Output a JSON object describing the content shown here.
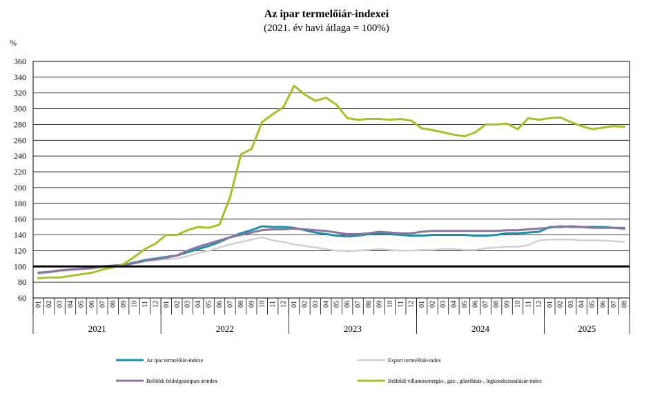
{
  "chart_data": {
    "type": "line",
    "title": "Az ipar  termelőiár-indexei",
    "subtitle": "(2021. év havi átlaga = 100%)",
    "ylabel": "%",
    "ylim": [
      60,
      360
    ],
    "yticks": [
      60,
      80,
      100,
      120,
      140,
      160,
      180,
      200,
      220,
      240,
      260,
      280,
      300,
      320,
      340,
      360
    ],
    "reference_line": 100,
    "grid": true,
    "years": [
      {
        "label": "2021",
        "months": 12
      },
      {
        "label": "2022",
        "months": 12
      },
      {
        "label": "2023",
        "months": 12
      },
      {
        "label": "2024",
        "months": 12
      },
      {
        "label": "2025",
        "months": 8
      }
    ],
    "x": [
      "01",
      "02",
      "03",
      "04",
      "05",
      "06",
      "07",
      "08",
      "09",
      "10",
      "11",
      "12",
      "01",
      "02",
      "03",
      "04",
      "05",
      "06",
      "07",
      "08",
      "09",
      "10",
      "11",
      "12",
      "01",
      "02",
      "03",
      "04",
      "05",
      "06",
      "07",
      "08",
      "09",
      "10",
      "11",
      "12",
      "01",
      "02",
      "03",
      "04",
      "05",
      "06",
      "07",
      "08",
      "09",
      "10",
      "11",
      "12",
      "01",
      "02",
      "03",
      "04",
      "05",
      "06",
      "07",
      "08"
    ],
    "series": [
      {
        "name": "Az ipar termelőiár-indexe",
        "color": "#1a8fae",
        "width": 3,
        "values": [
          92,
          93,
          95,
          96,
          97,
          98,
          100,
          101,
          102,
          105,
          108,
          110,
          112,
          114,
          118,
          122,
          126,
          131,
          137,
          142,
          146,
          151,
          150,
          150,
          149,
          146,
          143,
          141,
          139,
          138,
          139,
          141,
          142,
          141,
          140,
          139,
          139,
          140,
          140,
          140,
          140,
          139,
          139,
          140,
          142,
          142,
          143,
          144,
          150,
          150,
          151,
          150,
          150,
          150,
          149,
          148
        ]
      },
      {
        "name": "Export termelőiár-index",
        "color": "#d0d0d0",
        "width": 2.5,
        "values": [
          90,
          92,
          94,
          95,
          96,
          97,
          99,
          100,
          101,
          104,
          107,
          108,
          109,
          110,
          113,
          117,
          120,
          124,
          128,
          131,
          134,
          137,
          133,
          131,
          128,
          126,
          124,
          122,
          120,
          119,
          120,
          121,
          122,
          121,
          120,
          120,
          121,
          121,
          122,
          122,
          121,
          121,
          123,
          124,
          125,
          125,
          127,
          133,
          134,
          134,
          134,
          133,
          133,
          133,
          132,
          131
        ]
      },
      {
        "name": "Belföldi feldolgozóipari árindex",
        "color": "#8b75a0",
        "width": 3,
        "values": [
          92,
          93,
          95,
          96,
          97,
          98,
          100,
          101,
          102,
          104,
          107,
          109,
          111,
          114,
          120,
          125,
          129,
          133,
          137,
          140,
          143,
          146,
          147,
          147,
          148,
          147,
          146,
          145,
          143,
          141,
          141,
          142,
          144,
          143,
          142,
          142,
          144,
          145,
          145,
          145,
          145,
          145,
          145,
          145,
          146,
          146,
          147,
          148,
          149,
          151,
          150,
          150,
          149,
          149,
          149,
          149
        ]
      },
      {
        "name": "Belföldi villamosenergia-, gáz-, gőzellátás-, légkondicionálásár-index",
        "color": "#a5c123",
        "width": 3,
        "values": [
          85,
          86,
          86,
          88,
          90,
          92,
          96,
          99,
          103,
          112,
          122,
          129,
          140,
          140,
          146,
          150,
          149,
          153,
          188,
          242,
          249,
          283,
          293,
          302,
          329,
          318,
          310,
          314,
          305,
          288,
          286,
          287,
          287,
          286,
          287,
          285,
          275,
          273,
          270,
          267,
          265,
          270,
          280,
          280,
          281,
          274,
          288,
          286,
          288,
          289,
          283,
          278,
          274,
          276,
          278,
          277
        ]
      }
    ]
  }
}
